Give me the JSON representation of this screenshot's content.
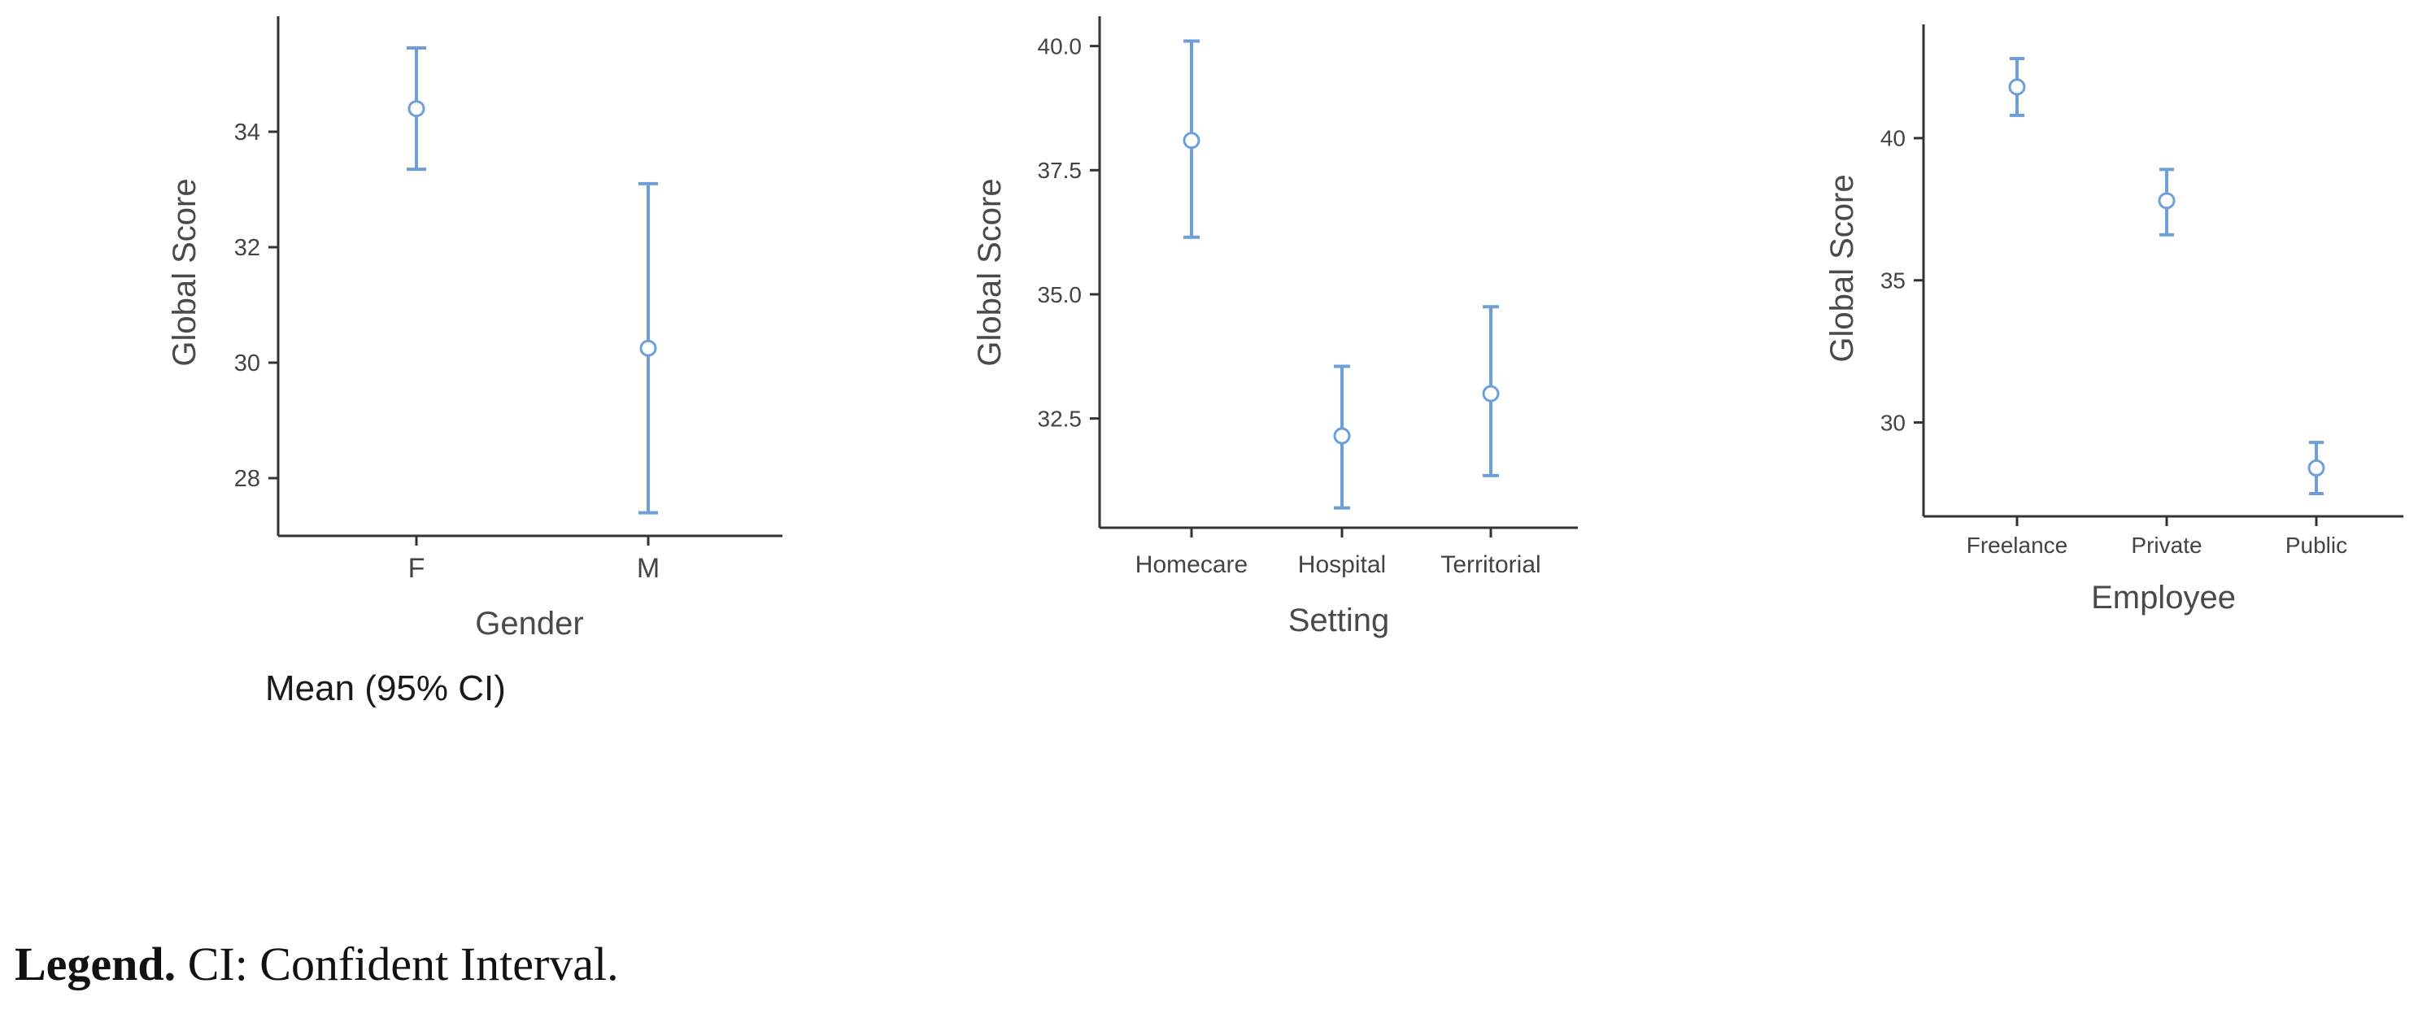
{
  "chart_data": [
    {
      "type": "errorbar",
      "xlabel": "Gender",
      "ylabel": "Global Score",
      "categories": [
        "F",
        "M"
      ],
      "mean": [
        34.4,
        30.25
      ],
      "ci_low": [
        33.35,
        27.4
      ],
      "ci_high": [
        35.45,
        33.1
      ],
      "yticks": [
        28,
        30,
        32,
        34
      ],
      "ylim": [
        27.0,
        36.0
      ],
      "grid": false
    },
    {
      "type": "errorbar",
      "xlabel": "Setting",
      "ylabel": "Global Score",
      "categories": [
        "Homecare",
        "Hospital",
        "Territorial"
      ],
      "mean": [
        38.1,
        32.15,
        33.0
      ],
      "ci_low": [
        36.15,
        30.7,
        31.35
      ],
      "ci_high": [
        40.1,
        33.55,
        34.75
      ],
      "yticks": [
        "32.5",
        "35.0",
        "37.5",
        "40.0"
      ],
      "ylim": [
        30.3,
        40.6
      ],
      "grid": false
    },
    {
      "type": "errorbar",
      "xlabel": "Employee",
      "ylabel": "Global Score",
      "categories": [
        "Freelance",
        "Private",
        "Public"
      ],
      "mean": [
        41.8,
        37.8,
        28.4
      ],
      "ci_low": [
        40.8,
        36.6,
        27.5
      ],
      "ci_high": [
        42.8,
        38.9,
        29.3
      ],
      "yticks": [
        30,
        35,
        40
      ],
      "ylim": [
        26.7,
        44.0
      ],
      "grid": false
    }
  ],
  "caption": "Mean (95% CI)",
  "legend": {
    "label": "Legend.",
    "text": "CI: Confident Interval."
  },
  "colors": {
    "series": "#6f9fd8",
    "axis": "#333333",
    "tick_text": "#444444"
  }
}
